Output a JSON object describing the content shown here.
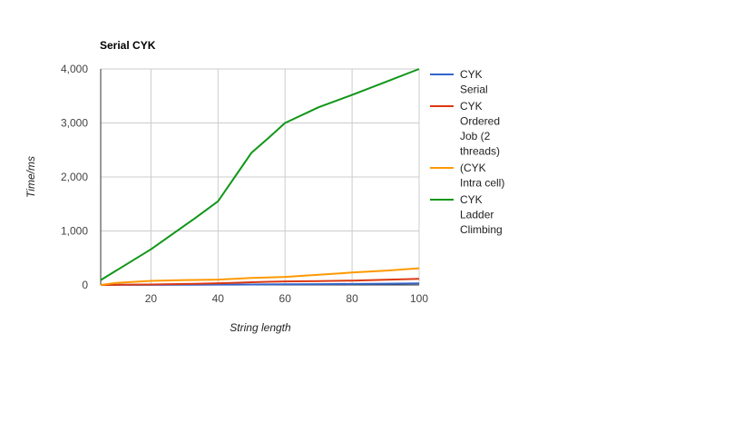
{
  "chart_data": {
    "type": "line",
    "title": "Serial CYK",
    "xlabel": "String length",
    "ylabel": "Time/ms",
    "x": [
      5,
      10,
      20,
      30,
      33,
      40,
      45,
      50,
      55,
      60,
      70,
      80,
      90,
      100
    ],
    "xlim": [
      5,
      100
    ],
    "ylim": [
      0,
      4000
    ],
    "xticks": [
      "20",
      "40",
      "60",
      "80",
      "100"
    ],
    "xtick_values": [
      20,
      40,
      60,
      80,
      100
    ],
    "yticks": [
      "0",
      "1,000",
      "2,000",
      "3,000",
      "4,000"
    ],
    "ytick_values": [
      0,
      1000,
      2000,
      3000,
      4000
    ],
    "grid": true,
    "legend_position": "right",
    "series": [
      {
        "name": "CYK Serial",
        "legend_lines": [
          "CYK",
          "Serial"
        ],
        "color": "#3366cc",
        "values": [
          0,
          1,
          2,
          4,
          4,
          6,
          7,
          9,
          10,
          12,
          15,
          19,
          23,
          28
        ]
      },
      {
        "name": "CYK Ordered Job (2 threads)",
        "legend_lines": [
          "CYK",
          "Ordered",
          "Job (2",
          "threads)"
        ],
        "color": "#dc3912",
        "values": [
          0,
          3,
          8,
          18,
          22,
          32,
          40,
          50,
          58,
          65,
          72,
          80,
          95,
          115
        ]
      },
      {
        "name": "(CYK Intra cell)",
        "legend_lines": [
          "(CYK",
          "Intra cell)"
        ],
        "color": "#ff9900",
        "values": [
          0,
          40,
          75,
          90,
          93,
          100,
          115,
          130,
          140,
          150,
          190,
          230,
          265,
          310
        ]
      },
      {
        "name": "CYK Ladder Climbing",
        "legend_lines": [
          "CYK",
          "Ladder",
          "Climbing"
        ],
        "color": "#109618",
        "values": [
          90,
          280,
          660,
          1100,
          1230,
          1550,
          2000,
          2450,
          2720,
          3000,
          3290,
          3520,
          3760,
          4000
        ]
      }
    ]
  }
}
